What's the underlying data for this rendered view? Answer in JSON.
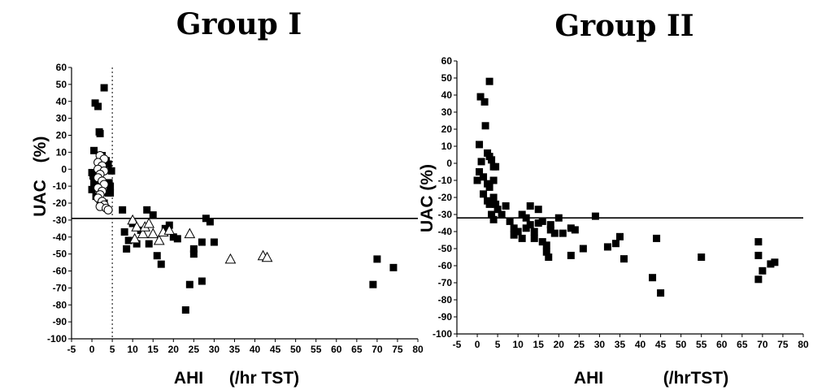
{
  "chart_data": [
    {
      "type": "scatter",
      "title": "Group I",
      "xlabel": "AHI",
      "xlabel_unit": "(/hr TST)",
      "ylabel": "UAC",
      "ylabel_unit": "(%)",
      "xlim": [
        -5,
        80
      ],
      "ylim": [
        -100,
        60
      ],
      "xticks": [
        -5,
        0,
        5,
        10,
        15,
        20,
        25,
        30,
        35,
        40,
        45,
        50,
        55,
        60,
        65,
        70,
        75,
        80
      ],
      "yticks": [
        60,
        50,
        40,
        30,
        20,
        10,
        0,
        -10,
        -20,
        -30,
        -40,
        -50,
        -60,
        -70,
        -80,
        -90,
        -100
      ],
      "hline": -29,
      "vline": 5,
      "series": [
        {
          "marker": "filled-square",
          "points": [
            [
              3,
              48
            ],
            [
              0.8,
              39
            ],
            [
              1.5,
              37
            ],
            [
              1.8,
              22
            ],
            [
              2,
              21
            ],
            [
              0.5,
              11
            ],
            [
              2.5,
              8
            ],
            [
              3.5,
              5
            ],
            [
              4,
              3
            ],
            [
              4.8,
              -1
            ],
            [
              0,
              -2
            ],
            [
              0.3,
              -4
            ],
            [
              0.5,
              -8
            ],
            [
              1.5,
              -10
            ],
            [
              4.2,
              -8
            ],
            [
              4.5,
              -10
            ],
            [
              0,
              -12
            ],
            [
              4,
              -14
            ],
            [
              1,
              -16
            ],
            [
              2,
              -18
            ],
            [
              3,
              -20
            ],
            [
              4.5,
              -14
            ],
            [
              7.5,
              -24
            ],
            [
              10,
              -32
            ],
            [
              13.5,
              -24
            ],
            [
              15,
              -27
            ],
            [
              8,
              -37
            ],
            [
              9,
              -42
            ],
            [
              8.5,
              -47
            ],
            [
              11,
              -44
            ],
            [
              12,
              -36
            ],
            [
              14,
              -44
            ],
            [
              16,
              -51
            ],
            [
              17,
              -56
            ],
            [
              18,
              -35
            ],
            [
              19,
              -33
            ],
            [
              20,
              -40
            ],
            [
              21,
              -41
            ],
            [
              25,
              -50
            ],
            [
              25,
              -47
            ],
            [
              27,
              -43
            ],
            [
              28,
              -29
            ],
            [
              29,
              -31
            ],
            [
              30,
              -43
            ],
            [
              24,
              -68
            ],
            [
              27,
              -66
            ],
            [
              23,
              -83
            ],
            [
              69,
              -68
            ],
            [
              70,
              -53
            ],
            [
              74,
              -58
            ]
          ]
        },
        {
          "marker": "open-circle",
          "points": [
            [
              2,
              8
            ],
            [
              3,
              6
            ],
            [
              1.5,
              4
            ],
            [
              2.5,
              2
            ],
            [
              1.5,
              0
            ],
            [
              3,
              -1
            ],
            [
              2,
              -3
            ],
            [
              1.5,
              -5
            ],
            [
              2.5,
              -7
            ],
            [
              3,
              -9
            ],
            [
              1.5,
              -11
            ],
            [
              2.5,
              -13
            ],
            [
              2,
              -15
            ],
            [
              1.5,
              -17
            ],
            [
              2.5,
              -19
            ],
            [
              3,
              -21
            ],
            [
              2,
              -22
            ],
            [
              3.5,
              -23
            ],
            [
              4,
              -24
            ]
          ]
        },
        {
          "marker": "open-triangle",
          "points": [
            [
              10,
              -30
            ],
            [
              11,
              -34
            ],
            [
              10.5,
              -41
            ],
            [
              12.5,
              -38
            ],
            [
              13,
              -34
            ],
            [
              14,
              -32
            ],
            [
              15,
              -38
            ],
            [
              16.5,
              -42
            ],
            [
              17.5,
              -37
            ],
            [
              19,
              -36
            ],
            [
              24,
              -38
            ],
            [
              34,
              -53
            ],
            [
              42,
              -51
            ],
            [
              43,
              -52
            ]
          ]
        }
      ]
    },
    {
      "type": "scatter",
      "title": "Group II",
      "xlabel": "AHI",
      "xlabel_unit": "(/hrTST)",
      "ylabel": "UAC (%)",
      "xlim": [
        -5,
        80
      ],
      "ylim": [
        -100,
        60
      ],
      "xticks": [
        -5,
        0,
        5,
        10,
        15,
        20,
        25,
        30,
        35,
        40,
        45,
        50,
        55,
        60,
        65,
        70,
        75,
        80
      ],
      "yticks": [
        60,
        50,
        40,
        30,
        20,
        10,
        0,
        -10,
        -20,
        -30,
        -40,
        -50,
        -60,
        -70,
        -80,
        -90,
        -100
      ],
      "hline": -32,
      "series": [
        {
          "marker": "filled-square",
          "points": [
            [
              3,
              48
            ],
            [
              0.8,
              39
            ],
            [
              1.8,
              36
            ],
            [
              2,
              22
            ],
            [
              0.5,
              11
            ],
            [
              2.5,
              6
            ],
            [
              3,
              4
            ],
            [
              3.5,
              2
            ],
            [
              1,
              1
            ],
            [
              4,
              -2
            ],
            [
              4.5,
              -2
            ],
            [
              0,
              -10
            ],
            [
              0.5,
              -5
            ],
            [
              1.5,
              -8
            ],
            [
              2.5,
              -12
            ],
            [
              3,
              -14
            ],
            [
              4,
              -10
            ],
            [
              1.5,
              -18
            ],
            [
              2.5,
              -22
            ],
            [
              3,
              -24
            ],
            [
              4,
              -20
            ],
            [
              4.5,
              -24
            ],
            [
              3.5,
              -30
            ],
            [
              5,
              -27
            ],
            [
              4,
              -33
            ],
            [
              6,
              -30
            ],
            [
              7,
              -25
            ],
            [
              8,
              -34
            ],
            [
              9,
              -38
            ],
            [
              9,
              -42
            ],
            [
              10,
              -40
            ],
            [
              11,
              -30
            ],
            [
              11,
              -44
            ],
            [
              12,
              -32
            ],
            [
              12,
              -38
            ],
            [
              13,
              -36
            ],
            [
              13,
              -25
            ],
            [
              14,
              -44
            ],
            [
              14,
              -40
            ],
            [
              15,
              -27
            ],
            [
              15,
              -35
            ],
            [
              16,
              -34
            ],
            [
              16,
              -46
            ],
            [
              17,
              -48
            ],
            [
              17,
              -52
            ],
            [
              17.5,
              -55
            ],
            [
              18,
              -39
            ],
            [
              18,
              -36
            ],
            [
              19,
              -41
            ],
            [
              20,
              -32
            ],
            [
              21,
              -41
            ],
            [
              23,
              -38
            ],
            [
              24,
              -39
            ],
            [
              23,
              -54
            ],
            [
              26,
              -50
            ],
            [
              29,
              -31
            ],
            [
              32,
              -49
            ],
            [
              34,
              -47
            ],
            [
              35,
              -43
            ],
            [
              36,
              -56
            ],
            [
              44,
              -44
            ],
            [
              43,
              -67
            ],
            [
              45,
              -76
            ],
            [
              55,
              -55
            ],
            [
              69,
              -46
            ],
            [
              69,
              -54
            ],
            [
              70,
              -63
            ],
            [
              69,
              -68
            ],
            [
              72,
              -59
            ],
            [
              73,
              -58
            ]
          ]
        }
      ]
    }
  ]
}
